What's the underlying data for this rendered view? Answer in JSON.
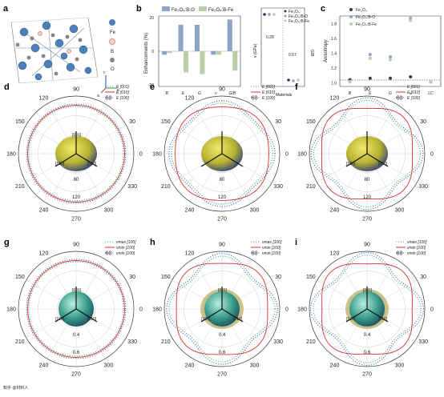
{
  "panels": {
    "a": {
      "label": "a",
      "legend": [
        "Fe",
        "B",
        "O"
      ],
      "axes": [
        "c",
        "a",
        "b"
      ]
    },
    "b": {
      "label": "b",
      "legend": [
        "Fe₃O₄:B-O",
        "Fe₃O₄:B-Fe"
      ],
      "ylabel": "Enhancements (%)",
      "yticks": [
        "20",
        "0",
        "-20"
      ],
      "xcats": [
        "B",
        "E",
        "G",
        "v",
        "G/B"
      ],
      "right_ylabel_left": "v (GPa)",
      "right_ylabel_right": "G/B",
      "right_xlabel": "Materials",
      "right_legend": [
        "Fe₃O₄",
        "Fe₃O₄:B-O",
        "Fe₃O₄:B-Fe"
      ],
      "right_annotations": [
        "0.28",
        "0.57"
      ]
    },
    "c": {
      "label": "c",
      "legend": [
        "Fe₃O₄",
        "Fe₃O₄:B-O",
        "Fe₃O₄:B-Fe"
      ],
      "ylabel": "Anisotropy",
      "yticks": [
        "1.8",
        "1.6",
        "1.4",
        "1.2",
        "1.0"
      ],
      "xcats": [
        "B",
        "E",
        "G",
        "v",
        "LC"
      ]
    },
    "polar": [
      {
        "label": "d",
        "legend": [
          "E [001]",
          "E [010]",
          "E [100]"
        ],
        "rad": [
          "80",
          "120"
        ],
        "dirs": [
          "[001]",
          "[100]",
          "[010]"
        ]
      },
      {
        "label": "e",
        "legend": [
          "E [001]",
          "E [010]",
          "E [100]"
        ],
        "rad": [
          "80",
          "120"
        ],
        "dirs": [],
        "a": 0.07
      },
      {
        "label": "f",
        "legend": [
          "E [001]",
          "E [010]",
          "E [100]"
        ],
        "rad": [
          "80",
          "120"
        ],
        "dirs": [
          "[100]",
          "[010]"
        ],
        "a": 0.13
      },
      {
        "label": "g",
        "legend": [
          "vmax [100]",
          "vmin [100]",
          "vmin [100]"
        ],
        "rad": [
          "0.4",
          "0.6"
        ],
        "dirs": [
          "[001]",
          "[100]",
          "[010]"
        ]
      },
      {
        "label": "h",
        "legend": [
          "vmax [100]",
          "vmin [100]",
          "vmin [100]"
        ],
        "rad": [
          "0.4",
          "0.6"
        ],
        "dirs": [
          "[001]",
          "[100]",
          "[010]"
        ],
        "a": 0.12
      },
      {
        "label": "i",
        "legend": [
          "vmax [100]",
          "vmin [100]",
          "vmin [100]"
        ],
        "rad": [
          "0.4",
          "0.6"
        ],
        "dirs": [
          "[001]",
          "[100]",
          "[010]"
        ],
        "a": 0.14
      }
    ],
    "angles": [
      "90",
      "60",
      "30",
      "0",
      "330",
      "300",
      "270",
      "240",
      "210",
      "180",
      "150",
      "120"
    ]
  },
  "chart_data": [
    {
      "type": "bar",
      "categories": [
        "B",
        "E",
        "G",
        "v",
        "G/B"
      ],
      "series": [
        {
          "name": "Fe₃O₄:B-O",
          "values": [
            -2,
            15,
            15,
            -2,
            18
          ]
        },
        {
          "name": "Fe₃O₄:B-Fe",
          "values": [
            -1,
            -12,
            -13,
            -2,
            -11
          ]
        }
      ],
      "ylabel": "Enhancements (%)",
      "ylim": [
        -20,
        20
      ]
    },
    {
      "type": "scatter",
      "categories": [
        "B",
        "E",
        "G",
        "v",
        "LC"
      ],
      "series": [
        {
          "name": "Fe₃O₄",
          "values": [
            1.04,
            1.06,
            1.06,
            1.08,
            1.01
          ]
        },
        {
          "name": "Fe₃O₄:B-O",
          "values": [
            1.02,
            1.38,
            1.35,
            1.87,
            1.01
          ]
        },
        {
          "name": "Fe₃O₄:B-Fe",
          "values": [
            1.01,
            1.33,
            1.31,
            1.84,
            1.01
          ]
        }
      ],
      "ylabel": "Anisotropy",
      "ylim": [
        0.95,
        1.9
      ]
    }
  ],
  "watermark": "知乎 @材料人"
}
